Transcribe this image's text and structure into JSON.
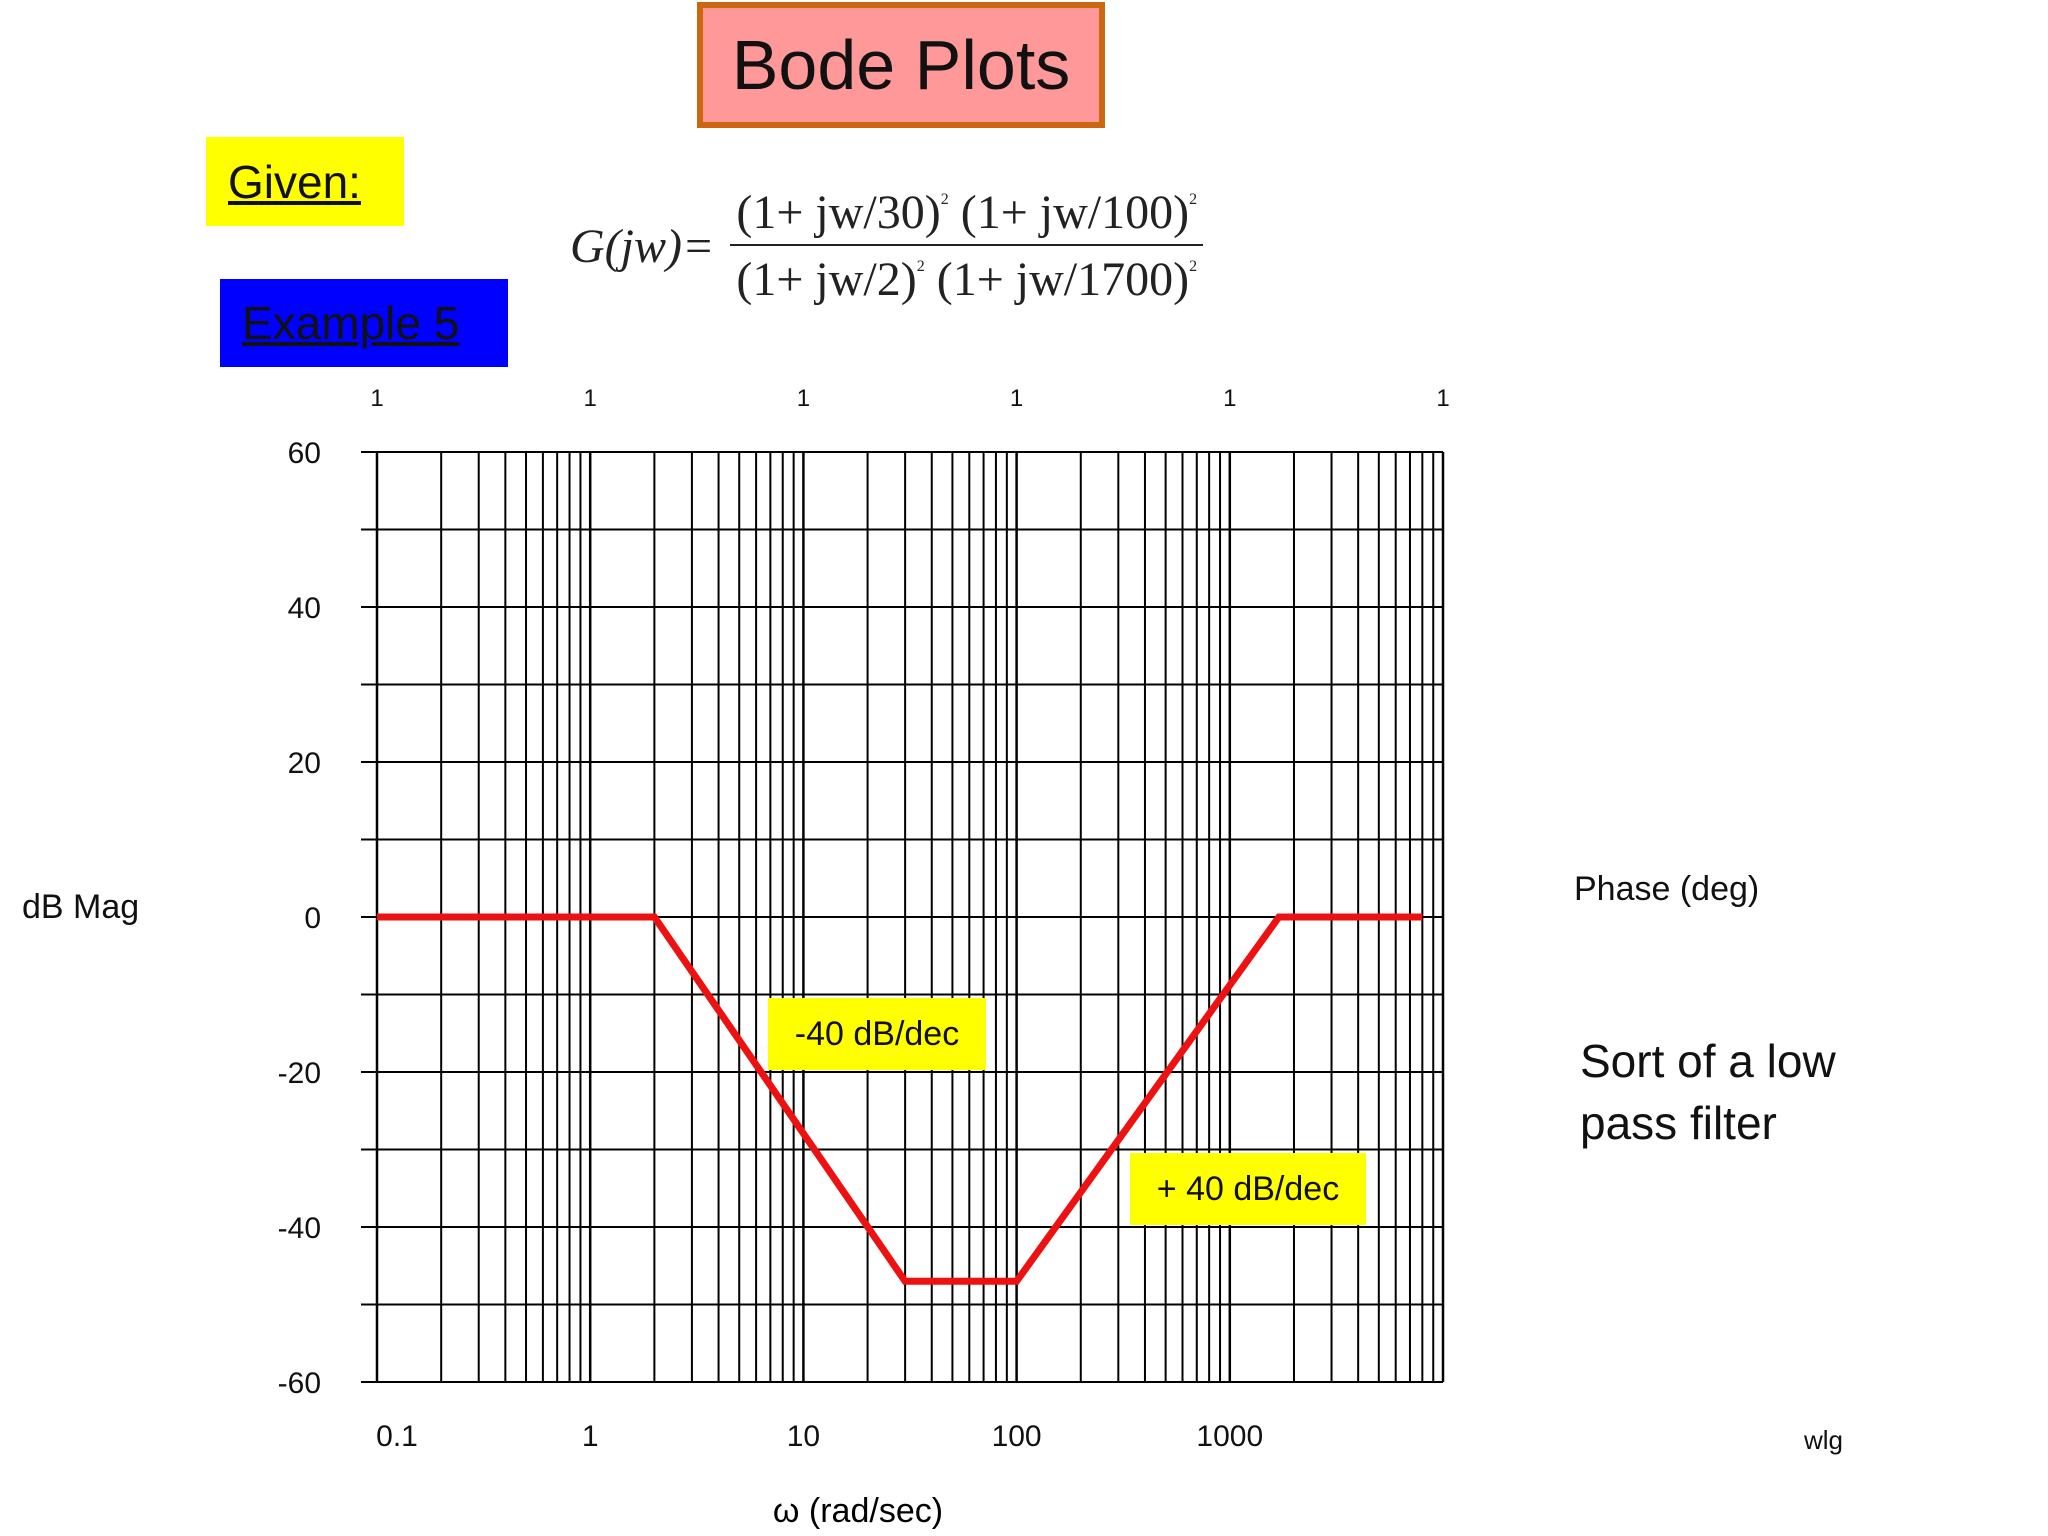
{
  "title": "Bode Plots",
  "given_label": "Given:",
  "example_label": "Example 5",
  "formula": {
    "lhs": "G(jw)=",
    "numerator": [
      {
        "text": "(1+ jw/30)",
        "exp": "2"
      },
      {
        "text": "(1+ jw/100)",
        "exp": "2"
      }
    ],
    "denominator": [
      {
        "text": "(1+ jw/2)",
        "exp": "2"
      },
      {
        "text": "(1+ jw/1700)",
        "exp": "2"
      }
    ]
  },
  "left_axis_title": "dB Mag",
  "right_axis_title": "Phase (deg)",
  "note": "Sort of a low pass filter",
  "author_tag": "wlg",
  "slope_labels": [
    "-40 dB/dec",
    "+ 40 dB/dec"
  ],
  "colors": {
    "curve": "#ee1111",
    "grid": "#000000",
    "highlight": "#ffff00"
  },
  "chart_data": {
    "type": "line",
    "xscale": "log",
    "xlim": [
      0.1,
      10000
    ],
    "ylim": [
      -60,
      60
    ],
    "xlabel": "ω (rad/sec)",
    "x_ticks": [
      {
        "value": 0.1,
        "label": "0.1"
      },
      {
        "value": 1,
        "label": "1"
      },
      {
        "value": 10,
        "label": "10"
      },
      {
        "value": 100,
        "label": "100"
      },
      {
        "value": 1000,
        "label": "1000"
      }
    ],
    "y_ticks": [
      60,
      40,
      20,
      0,
      -20,
      -40,
      -60
    ],
    "y_tick_labels": [
      "60",
      "40",
      "20",
      "0",
      "-20",
      "-40",
      "-60"
    ],
    "top_labels": [
      {
        "x": 0.1,
        "label": "1"
      },
      {
        "x": 1,
        "label": "1"
      },
      {
        "x": 10,
        "label": "1"
      },
      {
        "x": 100,
        "label": "1"
      },
      {
        "x": 1000,
        "label": "1"
      },
      {
        "x": 10000,
        "label": "1"
      }
    ],
    "grid": true,
    "series": [
      {
        "x": [
          0.1,
          2,
          30,
          100,
          1700,
          8000
        ],
        "y": [
          0,
          0,
          -47,
          -47,
          0,
          0
        ]
      }
    ]
  }
}
